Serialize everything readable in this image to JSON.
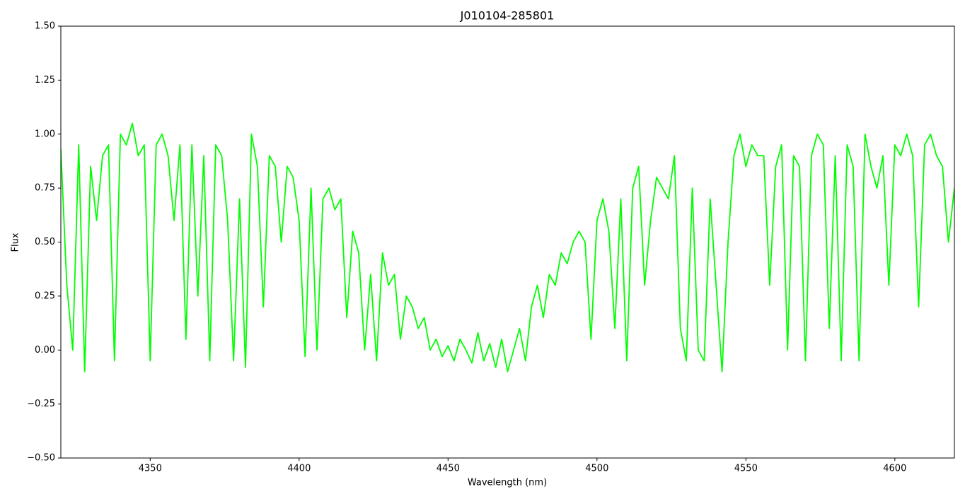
{
  "chart_data": {
    "type": "line",
    "title": "J010104-285801",
    "xlabel": "Wavelength (nm)",
    "ylabel": "Flux",
    "color": "#00ff00",
    "xlim": [
      4320,
      4620
    ],
    "xticks": [
      4350,
      4400,
      4450,
      4500,
      4550,
      4600
    ],
    "ylim": [
      -0.5,
      1.5
    ],
    "yticks": [
      {
        "value": -0.5,
        "label": "−0.50"
      },
      {
        "value": -0.25,
        "label": "−0.25"
      },
      {
        "value": 0,
        "label": "0.00"
      },
      {
        "value": 0.25,
        "label": "0.25"
      },
      {
        "value": 0.5,
        "label": "0.50"
      },
      {
        "value": 0.75,
        "label": "0.75"
      },
      {
        "value": 1,
        "label": "1.00"
      },
      {
        "value": 1.25,
        "label": "1.25"
      },
      {
        "value": 1.5,
        "label": "1.50"
      }
    ],
    "x": [
      4320,
      4322,
      4324,
      4326,
      4328,
      4330,
      4332,
      4334,
      4336,
      4338,
      4340,
      4342,
      4344,
      4346,
      4348,
      4350,
      4352,
      4354,
      4356,
      4358,
      4360,
      4362,
      4364,
      4366,
      4368,
      4370,
      4372,
      4374,
      4376,
      4378,
      4380,
      4382,
      4384,
      4386,
      4388,
      4390,
      4392,
      4394,
      4396,
      4398,
      4400,
      4402,
      4404,
      4406,
      4408,
      4410,
      4412,
      4414,
      4416,
      4418,
      4420,
      4422,
      4424,
      4426,
      4428,
      4430,
      4432,
      4434,
      4436,
      4438,
      4440,
      4442,
      4444,
      4446,
      4448,
      4450,
      4452,
      4454,
      4456,
      4458,
      4460,
      4462,
      4464,
      4466,
      4468,
      4470,
      4472,
      4474,
      4476,
      4478,
      4480,
      4482,
      4484,
      4486,
      4488,
      4490,
      4492,
      4494,
      4496,
      4498,
      4500,
      4502,
      4504,
      4506,
      4508,
      4510,
      4512,
      4514,
      4516,
      4518,
      4520,
      4522,
      4524,
      4526,
      4528,
      4530,
      4532,
      4534,
      4536,
      4538,
      4540,
      4542,
      4544,
      4546,
      4548,
      4550,
      4552,
      4554,
      4556,
      4558,
      4560,
      4562,
      4564,
      4566,
      4568,
      4570,
      4572,
      4574,
      4576,
      4578,
      4580,
      4582,
      4584,
      4586,
      4588,
      4590,
      4592,
      4594,
      4596,
      4598,
      4600,
      4602,
      4604,
      4606,
      4608,
      4610,
      4612,
      4614,
      4616,
      4618,
      4620
    ],
    "values": [
      0.93,
      0.3,
      0.0,
      0.95,
      -0.1,
      0.85,
      0.6,
      0.9,
      0.95,
      -0.05,
      1.0,
      0.95,
      1.05,
      0.9,
      0.95,
      -0.05,
      0.95,
      1.0,
      0.9,
      0.6,
      0.95,
      0.05,
      0.95,
      0.25,
      0.9,
      -0.05,
      0.95,
      0.9,
      0.6,
      -0.05,
      0.7,
      -0.08,
      1.0,
      0.85,
      0.2,
      0.9,
      0.85,
      0.5,
      0.85,
      0.8,
      0.6,
      -0.03,
      0.75,
      0.0,
      0.7,
      0.75,
      0.65,
      0.7,
      0.15,
      0.55,
      0.45,
      0.0,
      0.35,
      -0.05,
      0.45,
      0.3,
      0.35,
      0.05,
      0.25,
      0.2,
      0.1,
      0.15,
      0.0,
      0.05,
      -0.03,
      0.02,
      -0.05,
      0.05,
      0.0,
      -0.06,
      0.08,
      -0.05,
      0.03,
      -0.08,
      0.05,
      -0.1,
      0.0,
      0.1,
      -0.05,
      0.2,
      0.3,
      0.15,
      0.35,
      0.3,
      0.45,
      0.4,
      0.5,
      0.55,
      0.5,
      0.05,
      0.6,
      0.7,
      0.55,
      0.1,
      0.7,
      -0.05,
      0.75,
      0.85,
      0.3,
      0.6,
      0.8,
      0.75,
      0.7,
      0.9,
      0.1,
      -0.05,
      0.75,
      0.0,
      -0.05,
      0.7,
      0.3,
      -0.1,
      0.5,
      0.9,
      1.0,
      0.85,
      0.95,
      0.9,
      0.9,
      0.3,
      0.85,
      0.95,
      0.0,
      0.9,
      0.85,
      -0.05,
      0.9,
      1.0,
      0.95,
      0.1,
      0.9,
      -0.05,
      0.95,
      0.85,
      -0.05,
      1.0,
      0.85,
      0.75,
      0.9,
      0.3,
      0.95,
      0.9,
      1.0,
      0.9,
      0.2,
      0.95,
      1.0,
      0.9,
      0.85,
      0.5,
      0.75
    ]
  }
}
